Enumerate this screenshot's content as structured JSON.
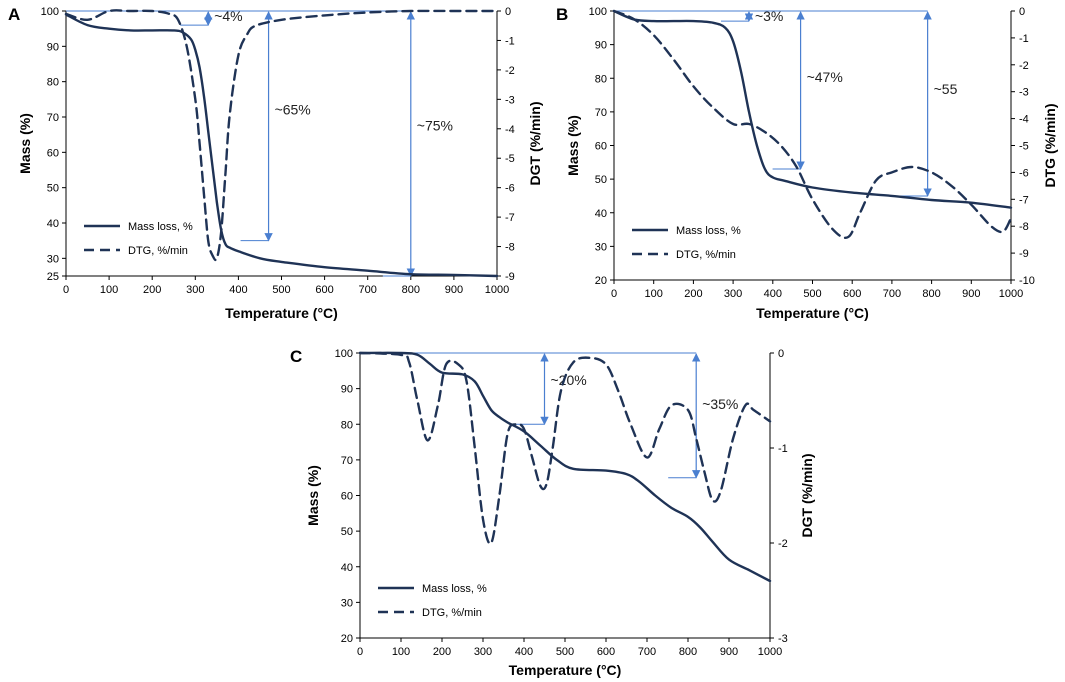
{
  "chart_data": [
    {
      "panel": "A",
      "type": "line",
      "xlabel": "Temperature (°C)",
      "ylabel": "Mass (%)",
      "y2label": "DGT (%/min)",
      "xlim": [
        0,
        1000
      ],
      "xticks": [
        0,
        100,
        200,
        300,
        400,
        500,
        600,
        700,
        800,
        900,
        1000
      ],
      "ylim": [
        25,
        100
      ],
      "yticks": [
        25,
        30,
        40,
        50,
        60,
        70,
        80,
        90,
        100
      ],
      "y2lim": [
        -9,
        0
      ],
      "y2ticks": [
        -9,
        -8,
        -7,
        -6,
        -5,
        -4,
        -3,
        -2,
        -1,
        0
      ],
      "legend": [
        "Mass loss, %",
        "DTG, %/min"
      ],
      "series": [
        {
          "name": "Mass loss, %",
          "axis": "left",
          "style": "solid",
          "x": [
            0,
            50,
            100,
            150,
            200,
            250,
            270,
            290,
            300,
            310,
            320,
            330,
            340,
            350,
            360,
            370,
            380,
            400,
            450,
            500,
            600,
            700,
            800,
            900,
            1000
          ],
          "values": [
            99,
            96,
            95,
            94.5,
            94.5,
            94.5,
            94,
            92,
            89,
            84,
            76,
            66,
            56,
            46,
            38,
            34,
            33,
            32,
            30,
            29,
            27.5,
            26.5,
            25.5,
            25.3,
            25
          ]
        },
        {
          "name": "DTG, %/min",
          "axis": "right",
          "style": "dashed",
          "x": [
            0,
            50,
            100,
            150,
            200,
            240,
            260,
            280,
            300,
            310,
            320,
            330,
            340,
            350,
            360,
            370,
            380,
            400,
            420,
            440,
            500,
            600,
            700,
            800,
            900,
            1000
          ],
          "values": [
            -0.1,
            -0.3,
            0,
            0,
            0,
            -0.1,
            -0.3,
            -1.2,
            -3,
            -4.5,
            -6.2,
            -7.8,
            -8.3,
            -8.4,
            -7.5,
            -5.5,
            -3.5,
            -1.5,
            -0.8,
            -0.5,
            -0.3,
            -0.15,
            -0.05,
            0,
            0,
            0
          ]
        }
      ],
      "annotations": [
        {
          "text": "~4%",
          "x": 330,
          "from": 100,
          "to": 96
        },
        {
          "text": "~65%",
          "x": 470,
          "from": 100,
          "to": 35
        },
        {
          "text": "~75%",
          "x": 800,
          "from": 100,
          "to": 25
        }
      ]
    },
    {
      "panel": "B",
      "type": "line",
      "xlabel": "Temperature (°C)",
      "ylabel": "Mass (%)",
      "y2label": "DTG (%/min)",
      "xlim": [
        0,
        1000
      ],
      "xticks": [
        0,
        100,
        200,
        300,
        400,
        500,
        600,
        700,
        800,
        900,
        1000
      ],
      "ylim": [
        20,
        100
      ],
      "yticks": [
        20,
        30,
        40,
        50,
        60,
        70,
        80,
        90,
        100
      ],
      "y2lim": [
        -10,
        0
      ],
      "y2ticks": [
        -10,
        -9,
        -8,
        -7,
        -6,
        -5,
        -4,
        -3,
        -2,
        -1,
        0
      ],
      "legend": [
        "Mass loss, %",
        "DTG, %/min"
      ],
      "series": [
        {
          "name": "Mass loss, %",
          "axis": "left",
          "style": "solid",
          "x": [
            0,
            50,
            100,
            150,
            200,
            250,
            280,
            300,
            320,
            340,
            360,
            380,
            400,
            430,
            500,
            600,
            700,
            800,
            900,
            1000
          ],
          "values": [
            100,
            97.5,
            97,
            97,
            97,
            96.5,
            95,
            91,
            82,
            70,
            60,
            53,
            50.5,
            49.5,
            47.5,
            46,
            45,
            43.8,
            43,
            41.5
          ]
        },
        {
          "name": "DTG, %/min",
          "axis": "right",
          "style": "dashed",
          "x": [
            0,
            50,
            100,
            150,
            200,
            250,
            300,
            340,
            380,
            420,
            460,
            500,
            550,
            590,
            620,
            660,
            700,
            750,
            800,
            850,
            900,
            950,
            980,
            1000
          ],
          "values": [
            0,
            -0.3,
            -0.9,
            -1.8,
            -2.8,
            -3.6,
            -4.2,
            -4.2,
            -4.5,
            -5,
            -5.8,
            -7,
            -8.1,
            -8.4,
            -7.5,
            -6.3,
            -6,
            -5.8,
            -6,
            -6.5,
            -7.2,
            -8,
            -8.2,
            -7.7
          ]
        }
      ],
      "annotations": [
        {
          "text": "~3%",
          "x": 340,
          "from": 100,
          "to": 97
        },
        {
          "text": "~47%",
          "x": 470,
          "from": 100,
          "to": 53
        },
        {
          "text": "~55",
          "x": 790,
          "from": 100,
          "to": 45
        }
      ]
    },
    {
      "panel": "C",
      "type": "line",
      "xlabel": "Temperature (°C)",
      "ylabel": "Mass (%)",
      "y2label": "DGT (%/min)",
      "xlim": [
        0,
        1000
      ],
      "xticks": [
        0,
        100,
        200,
        300,
        400,
        500,
        600,
        700,
        800,
        900,
        1000
      ],
      "ylim": [
        20,
        100
      ],
      "yticks": [
        20,
        30,
        40,
        50,
        60,
        70,
        80,
        90,
        100
      ],
      "y2lim": [
        -3,
        0
      ],
      "y2ticks": [
        -3,
        -2,
        -1,
        0
      ],
      "legend": [
        "Mass loss, %",
        "DTG, %/min"
      ],
      "series": [
        {
          "name": "Mass loss, %",
          "axis": "left",
          "style": "solid",
          "x": [
            0,
            100,
            140,
            170,
            200,
            250,
            280,
            300,
            320,
            340,
            360,
            400,
            440,
            480,
            520,
            600,
            650,
            680,
            720,
            760,
            800,
            830,
            860,
            900,
            950,
            1000
          ],
          "values": [
            100,
            100,
            99.5,
            97,
            94.5,
            94,
            92,
            88,
            84,
            82,
            80.5,
            78,
            74,
            70,
            67.5,
            67,
            66,
            64,
            60,
            56.5,
            54,
            51,
            47,
            42,
            39,
            36
          ]
        },
        {
          "name": "DTG, %/min",
          "axis": "right",
          "style": "dashed",
          "x": [
            0,
            100,
            120,
            140,
            165,
            190,
            210,
            240,
            260,
            280,
            300,
            320,
            340,
            360,
            380,
            400,
            420,
            440,
            455,
            470,
            490,
            520,
            560,
            600,
            630,
            660,
            700,
            730,
            760,
            800,
            820,
            840,
            860,
            880,
            910,
            940,
            960,
            1000
          ],
          "values": [
            0,
            -0.02,
            -0.1,
            -0.5,
            -0.92,
            -0.55,
            -0.12,
            -0.12,
            -0.3,
            -1.0,
            -1.75,
            -2.0,
            -1.5,
            -0.85,
            -0.75,
            -0.8,
            -1.1,
            -1.4,
            -1.38,
            -1.0,
            -0.4,
            -0.1,
            -0.05,
            -0.12,
            -0.4,
            -0.75,
            -1.1,
            -0.8,
            -0.55,
            -0.6,
            -0.9,
            -1.25,
            -1.55,
            -1.45,
            -0.9,
            -0.55,
            -0.6,
            -0.72
          ]
        }
      ],
      "annotations": [
        {
          "text": "~20%",
          "x": 450,
          "from": 100,
          "to": 80
        },
        {
          "text": "~35%",
          "x": 820,
          "from": 100,
          "to": 65
        }
      ]
    }
  ]
}
